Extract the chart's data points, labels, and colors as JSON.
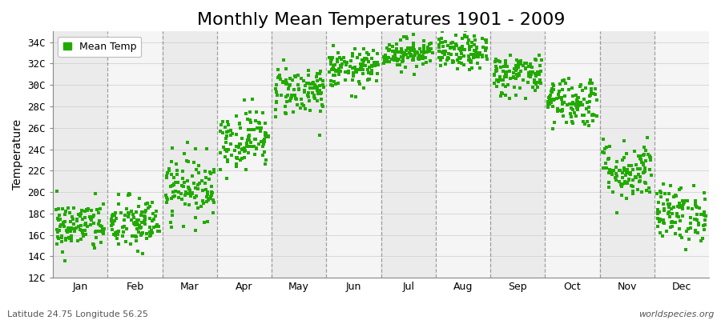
{
  "title": "Monthly Mean Temperatures 1901 - 2009",
  "ylabel": "Temperature",
  "subtitle_left": "Latitude 24.75 Longitude 56.25",
  "subtitle_right": "worldspecies.org",
  "legend_label": "Mean Temp",
  "marker_color": "#22AA00",
  "background_color": "#FFFFFF",
  "band_colors": [
    "#EBEBEB",
    "#F5F5F5"
  ],
  "months": [
    "Jan",
    "Feb",
    "Mar",
    "Apr",
    "May",
    "Jun",
    "Jul",
    "Aug",
    "Sep",
    "Oct",
    "Nov",
    "Dec"
  ],
  "month_mean_temps": [
    16.8,
    17.0,
    20.5,
    25.0,
    29.5,
    31.5,
    33.0,
    33.0,
    31.0,
    28.5,
    22.0,
    18.0
  ],
  "month_std_temps": [
    1.2,
    1.3,
    1.5,
    1.4,
    1.2,
    0.9,
    0.7,
    0.8,
    1.0,
    1.2,
    1.4,
    1.3
  ],
  "n_years": 109,
  "ylim": [
    12,
    35
  ],
  "yticks": [
    12,
    14,
    16,
    18,
    20,
    22,
    24,
    26,
    28,
    30,
    32,
    34
  ],
  "title_fontsize": 16,
  "axis_fontsize": 10,
  "tick_fontsize": 9,
  "legend_fontsize": 9,
  "marker_size": 5,
  "grid_color": "#666666",
  "grid_style": "--",
  "grid_alpha": 0.6,
  "band_alpha": 1.0
}
